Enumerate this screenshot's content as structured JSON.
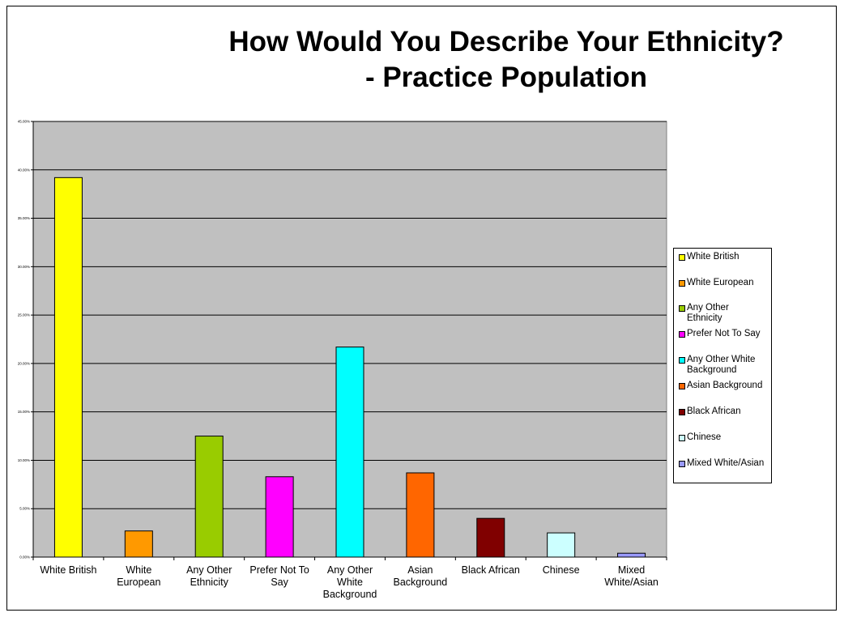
{
  "chart_data": {
    "type": "bar",
    "title_line1": "How Would You Describe Your Ethnicity?",
    "title_line2": "- Practice Population",
    "categories": [
      "White British",
      "White European",
      "Any Other Ethnicity",
      "Prefer Not To Say",
      "Any Other White Background",
      "Asian Background",
      "Black African",
      "Chinese",
      "Mixed White/Asian"
    ],
    "category_labels": [
      [
        "White British"
      ],
      [
        "White",
        "European"
      ],
      [
        "Any Other",
        "Ethnicity"
      ],
      [
        "Prefer Not To",
        "Say"
      ],
      [
        "Any Other",
        "White",
        "Background"
      ],
      [
        "Asian",
        "Background"
      ],
      [
        "Black African"
      ],
      [
        "Chinese"
      ],
      [
        "Mixed",
        "White/Asian"
      ]
    ],
    "values": [
      39.2,
      2.7,
      12.5,
      8.3,
      21.7,
      8.7,
      4.0,
      2.5,
      0.4
    ],
    "colors": [
      "#FFFF00",
      "#FF9900",
      "#99CC00",
      "#FF00FF",
      "#00FFFF",
      "#FF6600",
      "#800000",
      "#CCFFFF",
      "#9999FF"
    ],
    "ylim": [
      0,
      45
    ],
    "yticks": [
      "0.00%",
      "5.00%",
      "10.00%",
      "15.00%",
      "20.00%",
      "25.00%",
      "30.00%",
      "35.00%",
      "40.00%",
      "45.00%"
    ],
    "plot_background": "#C0C0C0",
    "grid": true,
    "legend_position": "right",
    "legend": [
      [
        "White British"
      ],
      [
        "White European"
      ],
      [
        "Any Other",
        "Ethnicity"
      ],
      [
        "Prefer Not To Say"
      ],
      [
        "Any Other White",
        "Background"
      ],
      [
        "Asian Background"
      ],
      [
        "Black African"
      ],
      [
        "Chinese"
      ],
      [
        "Mixed White/Asian"
      ]
    ]
  }
}
